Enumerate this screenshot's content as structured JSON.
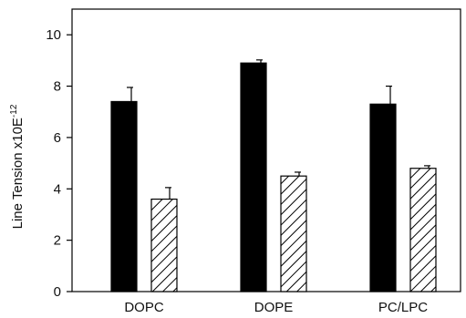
{
  "chart_data": {
    "type": "bar",
    "categories": [
      "DOPC",
      "DOPE",
      "PC/LPC"
    ],
    "series": [
      {
        "fill": "solid",
        "values": [
          7.4,
          8.9,
          7.3
        ],
        "errors": [
          0.55,
          0.12,
          0.7
        ]
      },
      {
        "fill": "hatched",
        "values": [
          3.6,
          4.5,
          4.8
        ],
        "errors": [
          0.45,
          0.15,
          0.1
        ]
      }
    ],
    "ylabel": "Line Tension x10E",
    "ylabel_exponent": "-12",
    "ylim": [
      0,
      11
    ],
    "yticks": [
      0,
      2,
      4,
      6,
      8,
      10
    ],
    "ytick_labels": [
      "0",
      "2",
      "4",
      "6",
      "8",
      "10"
    ],
    "grid": false,
    "colors": {
      "solid": "#000000",
      "hatch": "#000000",
      "axis": "#000000"
    }
  }
}
